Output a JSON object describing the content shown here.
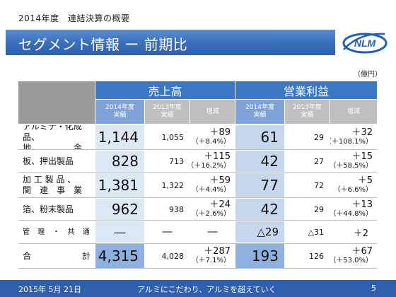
{
  "header": {
    "subtitle": "2014年度　連結決算の概要",
    "title": "セグメント情報 ー 前期比",
    "logo_text": "NLM"
  },
  "unit": "（億円）",
  "table": {
    "group_sales": "売上高",
    "group_profit": "営業利益",
    "col_fy2014": "2014年度\n実績",
    "col_fy2013": "2013年度\n実績",
    "col_change": "増減",
    "rows": [
      {
        "label": "アルミナ・化成品、\n地　　　　　金",
        "sales_2014": "1,144",
        "sales_2013": "1,055",
        "sales_delta": "＋89",
        "sales_pct": "（＋8.4%）",
        "profit_2014": "61",
        "profit_2013": "29",
        "profit_delta": "＋32",
        "profit_pct": "（＋108.1%）"
      },
      {
        "label": "板、押出製品",
        "sales_2014": "828",
        "sales_2013": "713",
        "sales_delta": "＋115",
        "sales_pct": "（＋16.2%）",
        "profit_2014": "42",
        "profit_2013": "27",
        "profit_delta": "＋15",
        "profit_pct": "（＋58.5%）"
      },
      {
        "label": "加 工 製 品 、\n関　連　事　業",
        "sales_2014": "1,381",
        "sales_2013": "1,322",
        "sales_delta": "＋59",
        "sales_pct": "（＋4.4%）",
        "profit_2014": "77",
        "profit_2013": "72",
        "profit_delta": "＋5",
        "profit_pct": "（＋6.6%）"
      },
      {
        "label": "箔、粉末製品",
        "sales_2014": "962",
        "sales_2013": "938",
        "sales_delta": "＋24",
        "sales_pct": "（＋2.6%）",
        "profit_2014": "42",
        "profit_2013": "29",
        "profit_delta": "＋13",
        "profit_pct": "（＋44.8%）"
      },
      {
        "label": "管 理 ・ 共 通",
        "sales_2014": "―",
        "sales_2013": "―",
        "sales_delta": "―",
        "sales_pct": "",
        "profit_2014": "△29",
        "profit_2013": "△31",
        "profit_delta": "＋2",
        "profit_pct": ""
      },
      {
        "label": "合　　　　　　計",
        "sales_2014": "4,315",
        "sales_2013": "4,028",
        "sales_delta": "＋287",
        "sales_pct": "（＋7.1%）",
        "profit_2014": "193",
        "profit_2013": "126",
        "profit_delta": "＋67",
        "profit_pct": "（＋53.0%）"
      }
    ]
  },
  "footer": {
    "date": "2015年 5月 21日",
    "slogan": "アルミにこだわり、アルミを超えていく",
    "page": "5"
  },
  "colors": {
    "accent": "#3c77c6",
    "title_bar": "#2d61b0",
    "light_blue": "#dde8f5"
  }
}
